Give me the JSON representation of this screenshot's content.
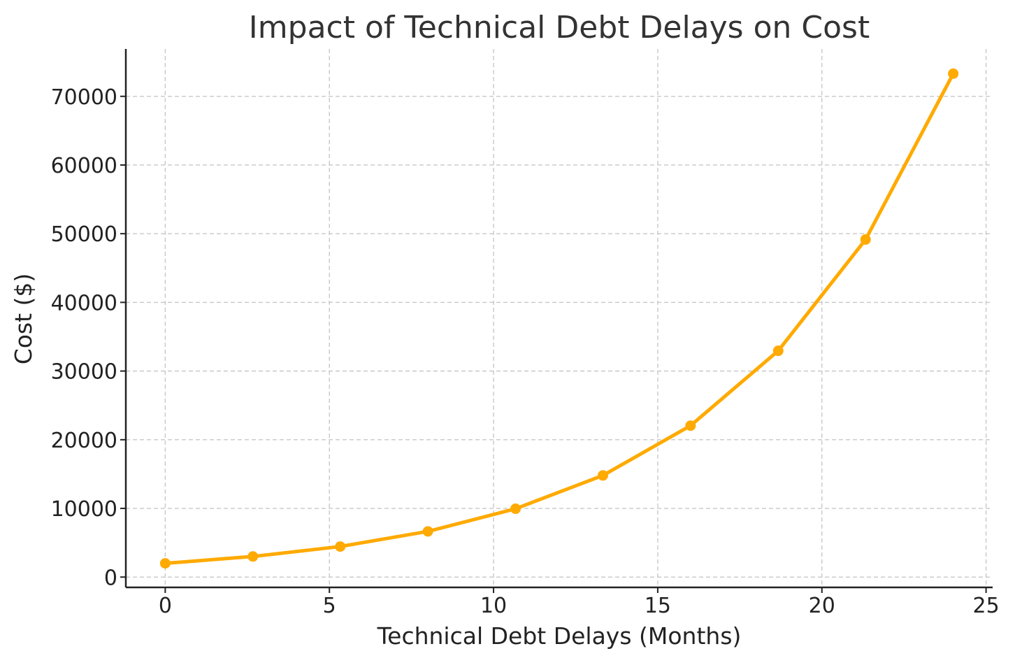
{
  "chart_data": {
    "type": "line",
    "title": "Impact of Technical Debt Delays on Cost",
    "xlabel": "Technical Debt Delays (Months)",
    "ylabel": "Cost ($)",
    "xlim": [
      -1.2,
      25.2
    ],
    "ylim": [
      -1500,
      76900
    ],
    "x_ticks": [
      0,
      5,
      10,
      15,
      20,
      25
    ],
    "y_ticks": [
      0,
      10000,
      20000,
      30000,
      40000,
      50000,
      60000,
      70000
    ],
    "x_tick_labels": [
      "0",
      "5",
      "10",
      "15",
      "20",
      "25"
    ],
    "y_tick_labels": [
      "0",
      "10000",
      "20000",
      "30000",
      "40000",
      "50000",
      "60000",
      "70000"
    ],
    "grid": true,
    "series": [
      {
        "color": "#FFAA00",
        "marker": "circle",
        "x": [
          0,
          2.67,
          5.33,
          8.0,
          10.67,
          13.33,
          16.0,
          18.67,
          21.33,
          24.0
        ],
        "y": [
          2000,
          3000,
          4450,
          6650,
          9950,
          14800,
          22050,
          32950,
          49150,
          73300
        ]
      }
    ]
  }
}
